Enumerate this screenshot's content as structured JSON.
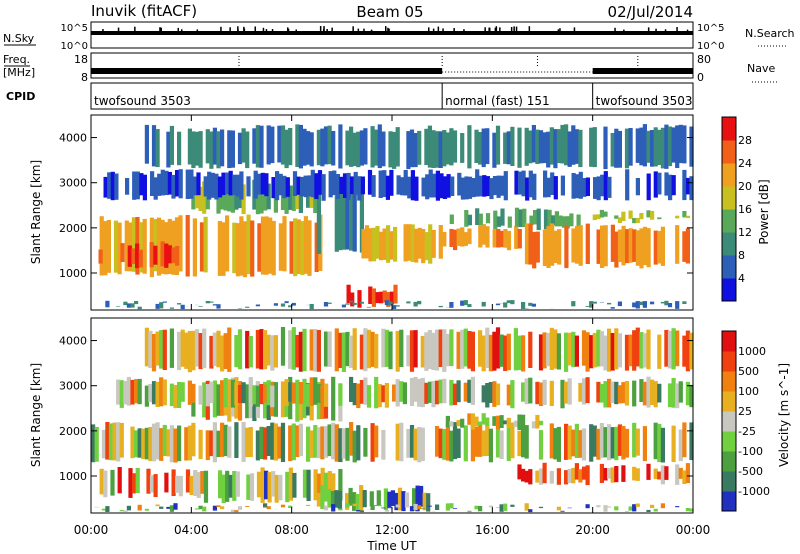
{
  "header": {
    "station": "Inuvik (fitACF)",
    "beam": "Beam 05",
    "date": "02/Jul/2014"
  },
  "panels": {
    "sky": {
      "label": "N.Sky",
      "left_ticks": [
        "10^5",
        "10^0"
      ],
      "right_ticks": [
        "10^5",
        "10^0"
      ],
      "right_label": "N.Search"
    },
    "freq": {
      "label_top": "Freq.",
      "label_unit": "[MHz]",
      "left_ticks": [
        "18",
        "8"
      ],
      "right_ticks": [
        "80",
        "0"
      ],
      "right_label": "Nave"
    },
    "cpid": {
      "label": "CPID",
      "segments": [
        {
          "name": "twofsound 3503",
          "start": "00:00",
          "end": "14:00"
        },
        {
          "name": "normal (fast) 151",
          "start": "14:00",
          "end": "20:00"
        },
        {
          "name": "twofsound 3503",
          "start": "20:00",
          "end": "00:00"
        }
      ]
    }
  },
  "x_axis": {
    "label": "Time UT",
    "ticks": [
      "00:00",
      "04:00",
      "08:00",
      "12:00",
      "16:00",
      "20:00",
      "00:00"
    ]
  },
  "chart_data": [
    {
      "type": "heatmap",
      "title": "Power",
      "ylabel": "Slant Range [km]",
      "xlabel": "Time UT",
      "xlim_hours": [
        0,
        24
      ],
      "ylim": [
        180,
        4500
      ],
      "y_ticks": [
        1000,
        2000,
        3000,
        4000
      ],
      "colorbar": {
        "label": "Power [dB]",
        "ticks": [
          4,
          8,
          12,
          16,
          20,
          24,
          28
        ],
        "range": [
          0,
          30
        ],
        "colors": [
          "#1010e0",
          "#2d5fb8",
          "#3c8a78",
          "#5aa95a",
          "#c8c020",
          "#f0a020",
          "#f06018",
          "#e81010"
        ]
      },
      "regions": [
        {
          "t0": 0.2,
          "t1": 9.2,
          "r0": 900,
          "r1": 2300,
          "level": 22
        },
        {
          "t0": 0.3,
          "t1": 3.5,
          "r0": 1100,
          "r1": 1700,
          "level": 27
        },
        {
          "t0": 4.0,
          "t1": 9.0,
          "r0": 2300,
          "r1": 3100,
          "level": 14
        },
        {
          "t0": 9.0,
          "t1": 11.0,
          "r0": 1400,
          "r1": 3000,
          "level": 10
        },
        {
          "t0": 9.9,
          "t1": 12.2,
          "r0": 200,
          "r1": 750,
          "level": 29
        },
        {
          "t0": 10.5,
          "t1": 14.0,
          "r0": 1200,
          "r1": 2100,
          "level": 21
        },
        {
          "t0": 14.0,
          "t1": 17.3,
          "r0": 1500,
          "r1": 2100,
          "level": 23
        },
        {
          "t0": 14.3,
          "t1": 19.5,
          "r0": 1950,
          "r1": 2450,
          "level": 12
        },
        {
          "t0": 17.3,
          "t1": 24.0,
          "r0": 1100,
          "r1": 2100,
          "level": 24
        },
        {
          "t0": 20.0,
          "t1": 24.0,
          "r0": 2100,
          "r1": 2400,
          "level": 16
        },
        {
          "t0": 0.0,
          "t1": 24.0,
          "r0": 200,
          "r1": 400,
          "level": 9
        },
        {
          "t0": 0.5,
          "t1": 24.0,
          "r0": 2600,
          "r1": 3300,
          "level": 5
        },
        {
          "t0": 2.0,
          "t1": 24.0,
          "r0": 3300,
          "r1": 4300,
          "level": 8
        }
      ]
    },
    {
      "type": "heatmap",
      "title": "Velocity",
      "ylabel": "Slant Range [km]",
      "xlabel": "Time UT",
      "xlim_hours": [
        0,
        24
      ],
      "ylim": [
        180,
        4500
      ],
      "y_ticks": [
        1000,
        2000,
        3000,
        4000
      ],
      "colorbar": {
        "label": "Velocity [m s^-1]",
        "ticks": [
          "1000",
          "500",
          "100",
          "25",
          "-25",
          "-100",
          "-500",
          "-1000"
        ],
        "colors": [
          "#2030c0",
          "#3a7a60",
          "#4da040",
          "#70d040",
          "#c8c8c0",
          "#e8b020",
          "#f08010",
          "#f04010",
          "#e01010"
        ]
      },
      "regions": [
        {
          "t0": 0.0,
          "t1": 24.0,
          "r0": 1300,
          "r1": 2200,
          "level": 4
        },
        {
          "t0": 4.0,
          "t1": 10.0,
          "r0": 2200,
          "r1": 3200,
          "level": 4
        },
        {
          "t0": 0.2,
          "t1": 4.5,
          "r0": 500,
          "r1": 1200,
          "level": 5
        },
        {
          "t0": 4.5,
          "t1": 10.0,
          "r0": 400,
          "r1": 1200,
          "level": 3
        },
        {
          "t0": 9.0,
          "t1": 13.5,
          "r0": 200,
          "r1": 800,
          "level": 2
        },
        {
          "t0": 14.0,
          "t1": 18.0,
          "r0": 2000,
          "r1": 2400,
          "level": 4
        },
        {
          "t0": 17.0,
          "t1": 24.0,
          "r0": 800,
          "r1": 1300,
          "level": 6
        },
        {
          "t0": 0.0,
          "t1": 24.0,
          "r0": 200,
          "r1": 400,
          "level": 3
        },
        {
          "t0": 1.0,
          "t1": 24.0,
          "r0": 2500,
          "r1": 3200,
          "level": 4
        },
        {
          "t0": 2.0,
          "t1": 24.0,
          "r0": 3300,
          "r1": 4300,
          "level": 5
        }
      ]
    }
  ]
}
